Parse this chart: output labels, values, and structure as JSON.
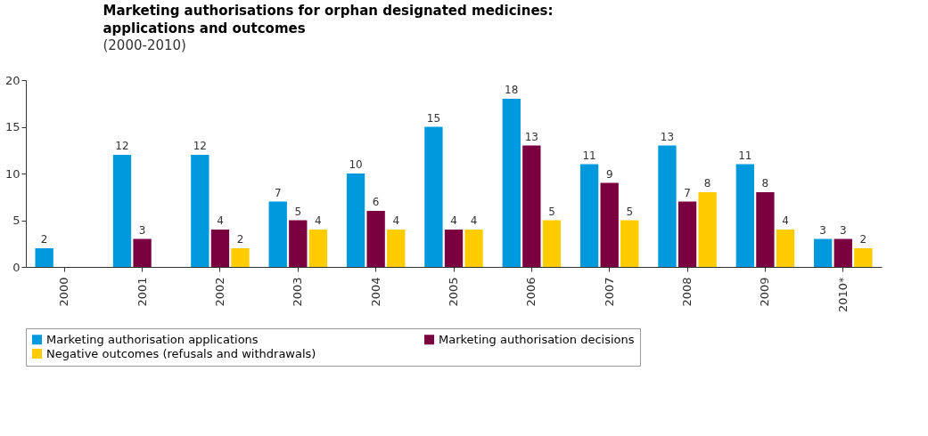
{
  "chart_data": {
    "type": "bar",
    "title": "Marketing authorisations for orphan designated medicines:\napplications and outcomes",
    "subtitle": "(2000-2010)",
    "categories": [
      "2000",
      "2001",
      "2002",
      "2003",
      "2004",
      "2005",
      "2006",
      "2007",
      "2008",
      "2009",
      "2010*"
    ],
    "series": [
      {
        "name": "Marketing authorisation applications",
        "color": "#0099dd",
        "values": [
          2,
          12,
          12,
          7,
          10,
          15,
          18,
          11,
          13,
          11,
          3
        ]
      },
      {
        "name": "Marketing authorisation decisions",
        "color": "#7a0040",
        "values": [
          null,
          3,
          4,
          5,
          6,
          4,
          13,
          9,
          7,
          8,
          3
        ]
      },
      {
        "name": "Negative outcomes (refusals and withdrawals)",
        "color": "#ffcc00",
        "values": [
          null,
          null,
          2,
          4,
          4,
          4,
          5,
          5,
          8,
          4,
          2
        ]
      }
    ],
    "ylim": [
      0,
      20
    ],
    "yticks": [
      0,
      5,
      10,
      15,
      20
    ],
    "data_labels": true,
    "legend": "bottom",
    "grid": false
  }
}
